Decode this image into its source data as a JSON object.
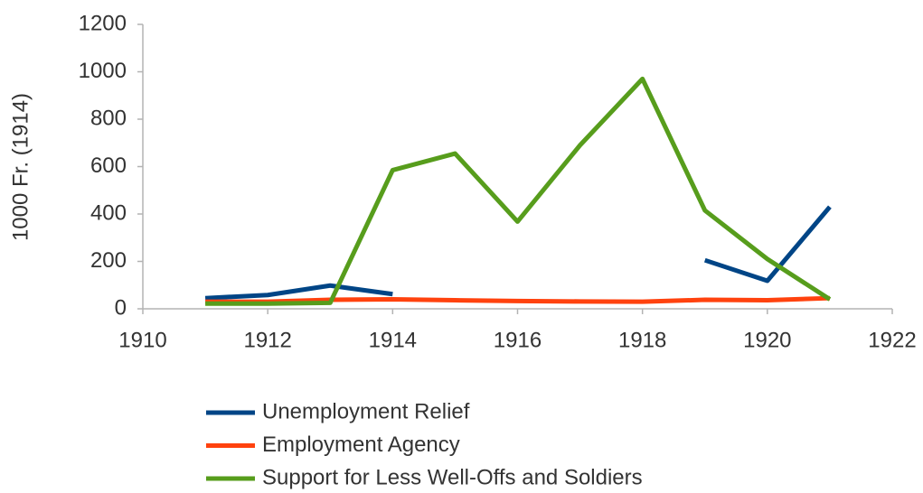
{
  "chart_data": {
    "type": "line",
    "y_label": "1000 Fr. (1914)",
    "x": [
      1911,
      1912,
      1913,
      1914,
      1915,
      1916,
      1917,
      1918,
      1919,
      1920,
      1921
    ],
    "xlim": [
      1910,
      1922
    ],
    "xticks": [
      1910,
      1912,
      1914,
      1916,
      1918,
      1920,
      1922
    ],
    "ylim": [
      0,
      1200
    ],
    "yticks": [
      0,
      200,
      400,
      600,
      800,
      1000,
      1200
    ],
    "grid": false,
    "legend": "bottom",
    "series": [
      {
        "name": "Unemployment Relief",
        "color": "#004586",
        "values": [
          45,
          58,
          98,
          62,
          null,
          null,
          null,
          null,
          205,
          118,
          430
        ]
      },
      {
        "name": "Employment Agency",
        "color": "#ff420e",
        "values": [
          30,
          30,
          38,
          40,
          36,
          33,
          31,
          30,
          38,
          36,
          45
        ]
      },
      {
        "name": "Support for Less Well-Offs and Soldiers",
        "color": "#579d1c",
        "values": [
          22,
          22,
          25,
          585,
          655,
          368,
          690,
          970,
          415,
          210,
          40
        ]
      }
    ]
  }
}
